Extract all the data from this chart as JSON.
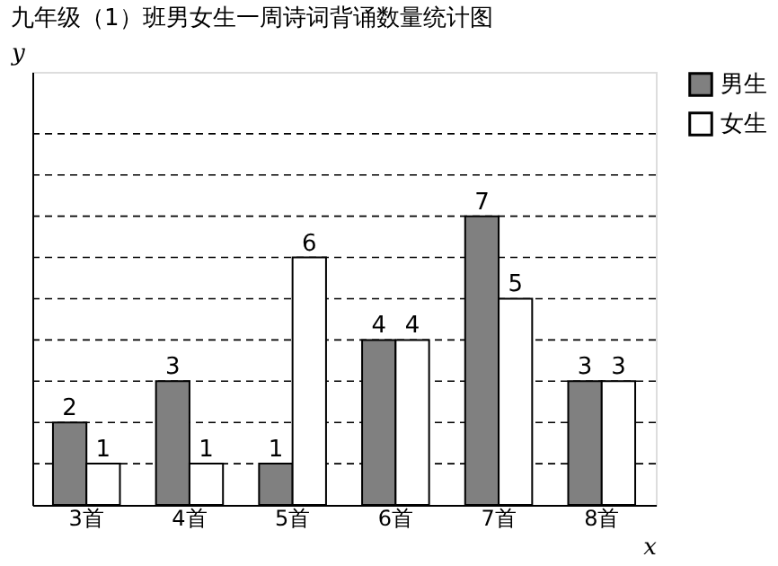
{
  "chart_data": {
    "type": "bar",
    "title": "九年级（1）班男女生一周诗词背诵数量统计图",
    "xlabel": "x",
    "ylabel": "y",
    "categories": [
      "3首",
      "4首",
      "5首",
      "6首",
      "7首",
      "8首"
    ],
    "series": [
      {
        "name": "男生",
        "color": "#808080",
        "values": [
          2,
          3,
          1,
          4,
          7,
          3
        ]
      },
      {
        "name": "女生",
        "color": "#ffffff",
        "values": [
          1,
          1,
          6,
          4,
          5,
          3
        ]
      }
    ],
    "ylim": [
      0,
      10.5
    ],
    "yticks": [
      {
        "value": 1,
        "label": null
      },
      {
        "value": 2,
        "label": null
      },
      {
        "value": 3,
        "label": null
      },
      {
        "value": 4,
        "label": null
      },
      {
        "value": 5,
        "label": null
      },
      {
        "value": 6,
        "label": null
      },
      {
        "value": 7,
        "label": null
      },
      {
        "value": 8,
        "label": null
      },
      {
        "value": 9,
        "label": null
      }
    ],
    "grid": "y",
    "legend": "right",
    "data_labels": true,
    "tick_labels": "x"
  }
}
